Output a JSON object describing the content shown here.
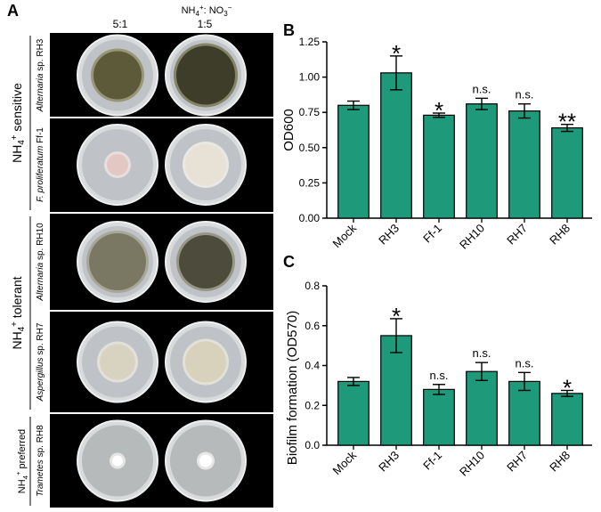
{
  "panel_a": {
    "label": "A",
    "column_header": {
      "prefix": "NH",
      "sub": "4",
      "sup": "+",
      "middle": ": NO",
      "sub2": "3",
      "sup2": "−"
    },
    "columns": [
      "5:1",
      "1:5"
    ],
    "groups": [
      {
        "text": "NH",
        "sub": "4",
        "sup": "+",
        "rest": " sensitive"
      },
      {
        "text": "NH",
        "sub": "4",
        "sup": "+",
        "rest": " tolerant"
      },
      {
        "text": "NH",
        "sub": "4",
        "sup": "+",
        "rest": " preferred"
      }
    ],
    "rows": [
      {
        "italic": "Alternaria",
        "plain": " sp. RH3"
      },
      {
        "italic": "F. proliferatum",
        "plain": " Ff-1"
      },
      {
        "italic": "Alternaria",
        "plain": " sp. RH10"
      },
      {
        "italic": "Aspergillus",
        "plain": " sp. RH7"
      },
      {
        "italic": "Trametes",
        "plain": " sp. RH8"
      }
    ],
    "colors": {
      "background": "#000000",
      "plate": "#c9ccd0",
      "separator": "#ffffff"
    }
  },
  "chart_data": [
    {
      "panel": "B",
      "type": "bar",
      "categories": [
        "Mock",
        "RH3",
        "Ff-1",
        "RH10",
        "RH7",
        "RH8"
      ],
      "values": [
        0.8,
        1.03,
        0.73,
        0.81,
        0.76,
        0.64
      ],
      "errors": [
        0.03,
        0.12,
        0.015,
        0.04,
        0.05,
        0.025
      ],
      "significance": [
        "",
        "*",
        "*",
        "n.s.",
        "n.s.",
        "**"
      ],
      "ylabel": "OD600",
      "ylim": [
        0,
        1.25
      ],
      "yticks": [
        "0.00",
        "0.25",
        "0.50",
        "0.75",
        "1.00",
        "1.25"
      ],
      "bar_color": "#1e9a7a",
      "grid": false
    },
    {
      "panel": "C",
      "type": "bar",
      "categories": [
        "Mock",
        "RH3",
        "Ff-1",
        "RH10",
        "RH7",
        "RH8"
      ],
      "values": [
        0.32,
        0.55,
        0.28,
        0.37,
        0.32,
        0.26
      ],
      "errors": [
        0.02,
        0.085,
        0.025,
        0.045,
        0.045,
        0.015
      ],
      "significance": [
        "",
        "*",
        "n.s.",
        "n.s.",
        "n.s.",
        "*"
      ],
      "ylabel": "Biofilm formation (OD570)",
      "ylim": [
        0,
        0.8
      ],
      "yticks": [
        "0.0",
        "0.2",
        "0.4",
        "0.6",
        "0.8"
      ],
      "bar_color": "#1e9a7a",
      "grid": false
    }
  ]
}
